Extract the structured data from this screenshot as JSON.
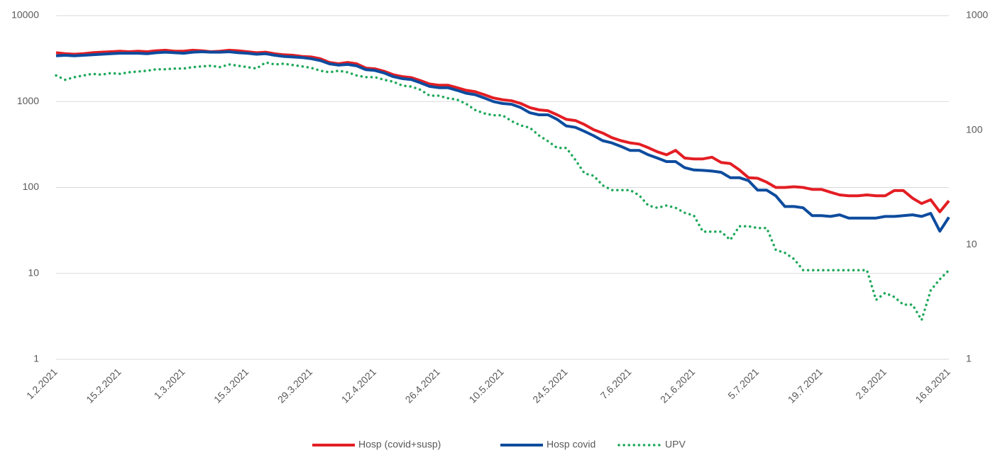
{
  "chart_data": {
    "type": "line",
    "categories": [
      "1.2.2021",
      null,
      null,
      null,
      null,
      null,
      null,
      "15.2.2021",
      null,
      null,
      null,
      null,
      null,
      null,
      "1.3.2021",
      null,
      null,
      null,
      null,
      null,
      null,
      "15.3.2021",
      null,
      null,
      null,
      null,
      null,
      null,
      "29.3.2021",
      null,
      null,
      null,
      null,
      null,
      null,
      "12.4.2021",
      null,
      null,
      null,
      null,
      null,
      null,
      "26.4.2021",
      null,
      null,
      null,
      null,
      null,
      null,
      "10.5.2021",
      null,
      null,
      null,
      null,
      null,
      null,
      "24.5.2021",
      null,
      null,
      null,
      null,
      null,
      null,
      "7.6.2021",
      null,
      null,
      null,
      null,
      null,
      null,
      "21.6.2021",
      null,
      null,
      null,
      null,
      null,
      null,
      "5.7.2021",
      null,
      null,
      null,
      null,
      null,
      null,
      "19.7.2021",
      null,
      null,
      null,
      null,
      null,
      null,
      "2.8.2021",
      null,
      null,
      null,
      null,
      null,
      null,
      "16.8.2021"
    ],
    "series": [
      {
        "name": "Hosp (covid+susp)",
        "color": "#e31e24",
        "style": "solid",
        "axis": "y",
        "values": [
          3700,
          3600,
          3550,
          3600,
          3700,
          3750,
          3800,
          3850,
          3800,
          3850,
          3800,
          3900,
          3950,
          3850,
          3850,
          3950,
          3900,
          3800,
          3850,
          3950,
          3900,
          3800,
          3700,
          3750,
          3600,
          3500,
          3450,
          3350,
          3300,
          3150,
          2850,
          2750,
          2850,
          2750,
          2450,
          2400,
          2250,
          2050,
          1950,
          1900,
          1750,
          1600,
          1550,
          1550,
          1450,
          1350,
          1300,
          1200,
          1100,
          1050,
          1020,
          950,
          850,
          800,
          780,
          700,
          620,
          600,
          540,
          470,
          430,
          380,
          350,
          330,
          320,
          290,
          260,
          240,
          270,
          220,
          215,
          215,
          225,
          195,
          190,
          160,
          130,
          128,
          115,
          100,
          100,
          102,
          100,
          95,
          95,
          88,
          82,
          80,
          80,
          82,
          80,
          80,
          92,
          92,
          75,
          65,
          72,
          52,
          70
        ]
      },
      {
        "name": "Hosp covid",
        "color": "#0d4c9e",
        "style": "solid",
        "axis": "y",
        "values": [
          3400,
          3450,
          3400,
          3450,
          3500,
          3550,
          3600,
          3650,
          3650,
          3650,
          3600,
          3700,
          3750,
          3700,
          3650,
          3750,
          3800,
          3750,
          3750,
          3800,
          3700,
          3650,
          3550,
          3600,
          3450,
          3350,
          3300,
          3250,
          3150,
          3000,
          2750,
          2650,
          2700,
          2600,
          2350,
          2300,
          2150,
          1950,
          1850,
          1800,
          1650,
          1500,
          1450,
          1450,
          1350,
          1250,
          1200,
          1100,
          1000,
          950,
          930,
          850,
          740,
          700,
          700,
          620,
          520,
          500,
          450,
          400,
          350,
          330,
          300,
          270,
          270,
          240,
          220,
          200,
          200,
          170,
          160,
          158,
          155,
          150,
          130,
          130,
          120,
          93,
          93,
          80,
          60,
          60,
          58,
          47,
          47,
          46,
          48,
          44,
          44,
          44,
          44,
          46,
          46,
          47,
          48,
          46,
          50,
          31,
          45
        ]
      },
      {
        "name": "UPV",
        "color": "#1fa85a",
        "style": "dotted",
        "axis": "y2",
        "values": [
          300,
          275,
          290,
          300,
          310,
          305,
          315,
          310,
          320,
          325,
          330,
          340,
          340,
          345,
          345,
          355,
          360,
          365,
          355,
          375,
          365,
          355,
          345,
          390,
          375,
          380,
          370,
          360,
          350,
          330,
          320,
          330,
          320,
          300,
          290,
          290,
          275,
          265,
          245,
          240,
          225,
          200,
          200,
          190,
          185,
          170,
          150,
          140,
          135,
          135,
          120,
          110,
          105,
          90,
          80,
          70,
          70,
          55,
          42,
          40,
          33,
          30,
          30,
          30,
          27,
          22,
          21,
          22,
          21,
          19,
          18,
          13,
          13,
          13,
          11,
          14.5,
          14.5,
          14,
          14,
          9,
          8.5,
          7.5,
          6,
          6,
          6,
          6,
          6,
          6,
          6,
          6,
          3.3,
          3.8,
          3.5,
          3,
          3,
          2.2,
          4,
          5,
          6
        ]
      }
    ],
    "ylim": [
      1,
      10000
    ],
    "yticks": [
      1,
      10,
      100,
      1000,
      10000
    ],
    "ylog": true,
    "y2lim": [
      1,
      1000
    ],
    "y2ticks": [
      1,
      10,
      100,
      1000
    ],
    "y2log": true,
    "grid": true,
    "legend": "bottom"
  }
}
